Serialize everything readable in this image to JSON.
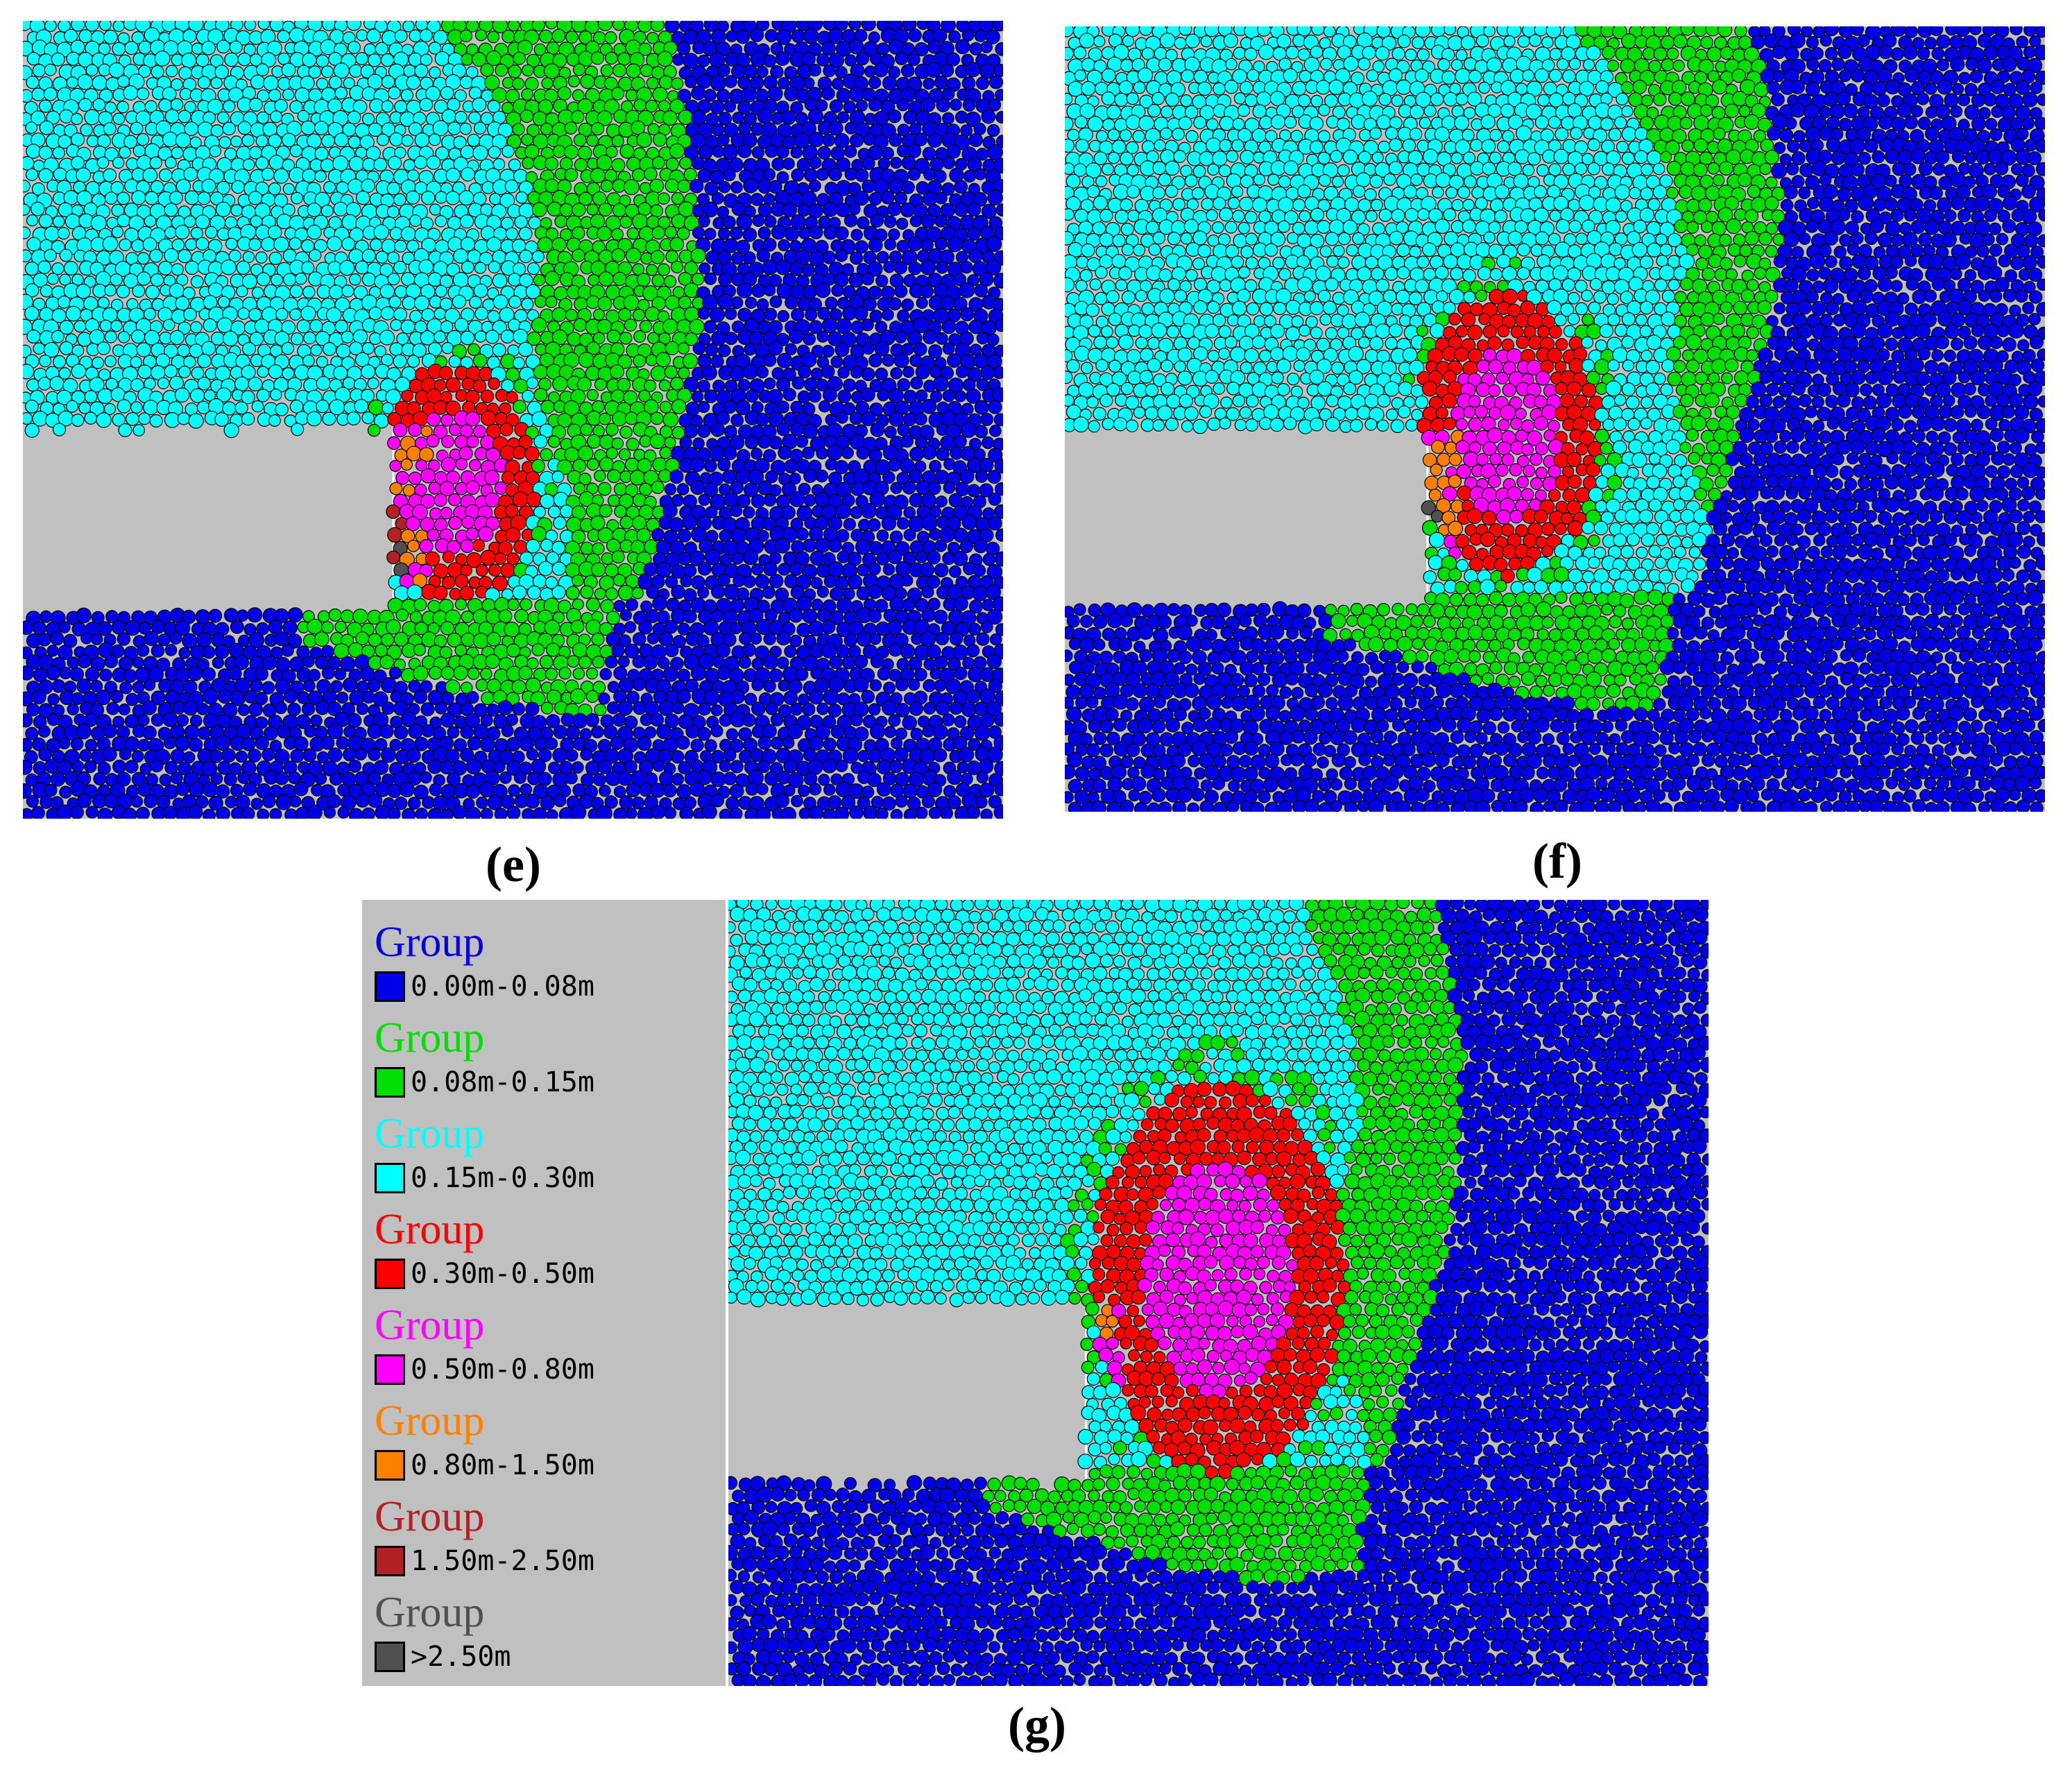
{
  "panels": [
    {
      "id": "e",
      "caption": "(e)"
    },
    {
      "id": "f",
      "caption": "(f)"
    },
    {
      "id": "g",
      "caption": "(g)"
    }
  ],
  "legend": {
    "items": [
      {
        "title": "Group",
        "range": "0.00m-0.08m",
        "color": "#0000e8"
      },
      {
        "title": "Group",
        "range": "0.08m-0.15m",
        "color": "#00e000"
      },
      {
        "title": "Group",
        "range": "0.15m-0.30m",
        "color": "#00ffff"
      },
      {
        "title": "Group",
        "range": "0.30m-0.50m",
        "color": "#ff0000"
      },
      {
        "title": "Group",
        "range": "0.50m-0.80m",
        "color": "#ff00ff"
      },
      {
        "title": "Group",
        "range": "0.80m-1.50m",
        "color": "#ff8000"
      },
      {
        "title": "Group",
        "range": "1.50m-2.50m",
        "color": "#b22222"
      },
      {
        "title": "Group",
        "range": ">2.50m",
        "color": "#505050"
      }
    ]
  }
}
